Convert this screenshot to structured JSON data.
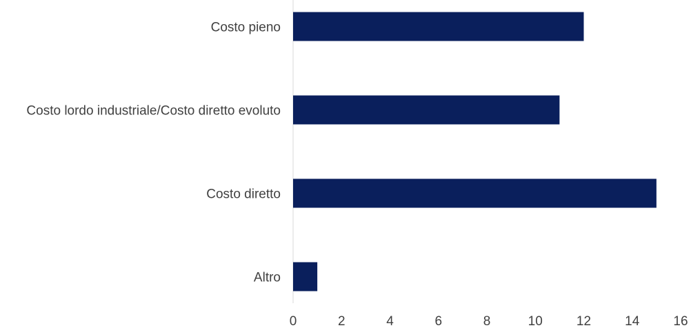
{
  "chart_data": {
    "type": "bar",
    "orientation": "horizontal",
    "categories": [
      "Costo pieno",
      "Costo lordo industriale/Costo diretto evoluto",
      "Costo diretto",
      "Altro"
    ],
    "values": [
      12,
      11,
      15,
      1
    ],
    "xlim": [
      0,
      16
    ],
    "xticks": [
      "0",
      "2",
      "4",
      "6",
      "8",
      "10",
      "12",
      "14",
      "16"
    ],
    "grid": false,
    "legend": "none",
    "colors": {
      "bar": "#0a1f5c"
    }
  }
}
